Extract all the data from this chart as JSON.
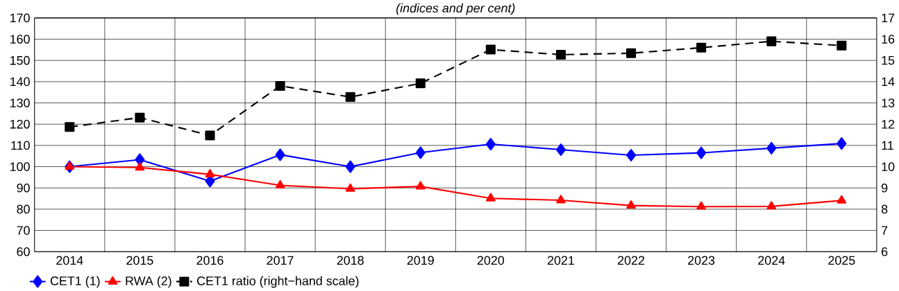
{
  "chart_data": {
    "type": "line",
    "subtitle": "(indices and per cent)",
    "categories": [
      "2014",
      "2015",
      "2016",
      "2017",
      "2018",
      "2019",
      "2020",
      "2021",
      "2022",
      "2023",
      "2024",
      "2025"
    ],
    "series": [
      {
        "name": "CET1 (1)",
        "color": "#0000ff",
        "marker": "diamond",
        "line_style": "solid",
        "values": [
          100,
          103.3,
          93.2,
          105.6,
          100,
          106.6,
          110.6,
          108,
          105.4,
          106.5,
          108.7,
          110.9
        ]
      },
      {
        "name": "RWA (2)",
        "color": "#ff0000",
        "marker": "triangle",
        "line_style": "solid",
        "values": [
          100,
          99.6,
          96.4,
          91.2,
          89.6,
          90.7,
          85.1,
          84.2,
          81.7,
          81.2,
          81.3,
          84.1
        ]
      },
      {
        "name": "CET1 ratio (right−hand scale)",
        "color": "#000000",
        "marker": "square",
        "line_style": "dashed",
        "axis": "y2",
        "values": [
          11.87,
          12.31,
          11.47,
          13.8,
          13.28,
          13.92,
          15.51,
          15.27,
          15.34,
          15.6,
          15.9,
          15.7
        ]
      }
    ],
    "ylim": [
      60,
      170
    ],
    "yticks": [
      60,
      70,
      80,
      90,
      100,
      110,
      120,
      130,
      140,
      150,
      160,
      170
    ],
    "y2lim": [
      6,
      17
    ],
    "y2ticks": [
      6,
      7,
      8,
      9,
      10,
      11,
      12,
      13,
      14,
      15,
      16,
      17
    ],
    "grid": true,
    "legend": "bottom"
  }
}
